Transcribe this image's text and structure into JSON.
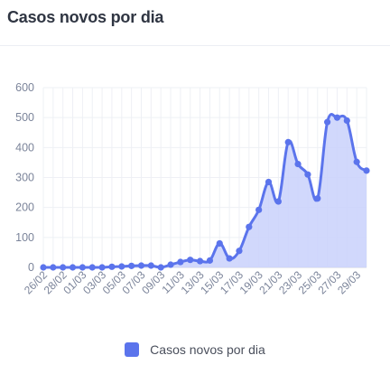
{
  "header": {
    "title": "Casos novos por dia"
  },
  "colors": {
    "line": "#5b74ec",
    "fill": "#c9d1fb",
    "point": "#5b74ec",
    "grid": "#eef0f5",
    "axis": "#cfd4e0",
    "tick_text": "#7b849a"
  },
  "legend": {
    "label": "Casos novos por dia",
    "icon": "square-swatch"
  },
  "chart_data": {
    "type": "area",
    "title": "",
    "xlabel": "",
    "ylabel": "",
    "ylim": [
      0,
      600
    ],
    "yticks": [
      0,
      100,
      200,
      300,
      400,
      500,
      600
    ],
    "grid": true,
    "legend_position": "bottom",
    "x": [
      "26/02",
      "27/02",
      "28/02",
      "29/02",
      "01/03",
      "02/03",
      "03/03",
      "04/03",
      "05/03",
      "06/03",
      "07/03",
      "08/03",
      "09/03",
      "10/03",
      "11/03",
      "12/03",
      "13/03",
      "14/03",
      "15/03",
      "16/03",
      "17/03",
      "18/03",
      "19/03",
      "20/03",
      "21/03",
      "22/03",
      "23/03",
      "24/03",
      "25/03",
      "26/03",
      "27/03",
      "28/03",
      "29/03",
      "30/03"
    ],
    "xtick_labels": [
      "26/02",
      "28/02",
      "01/03",
      "03/03",
      "05/03",
      "07/03",
      "09/03",
      "11/03",
      "13/03",
      "15/03",
      "17/03",
      "19/03",
      "21/03",
      "23/03",
      "25/03",
      "27/03",
      "29/03"
    ],
    "series": [
      {
        "name": "Casos novos por dia",
        "values": [
          0,
          0,
          0,
          0,
          0,
          0,
          0,
          2,
          3,
          5,
          6,
          6,
          0,
          9,
          18,
          25,
          21,
          23,
          80,
          30,
          55,
          135,
          192,
          285,
          220,
          418,
          345,
          310,
          230,
          485,
          500,
          490,
          352,
          323
        ]
      }
    ]
  }
}
